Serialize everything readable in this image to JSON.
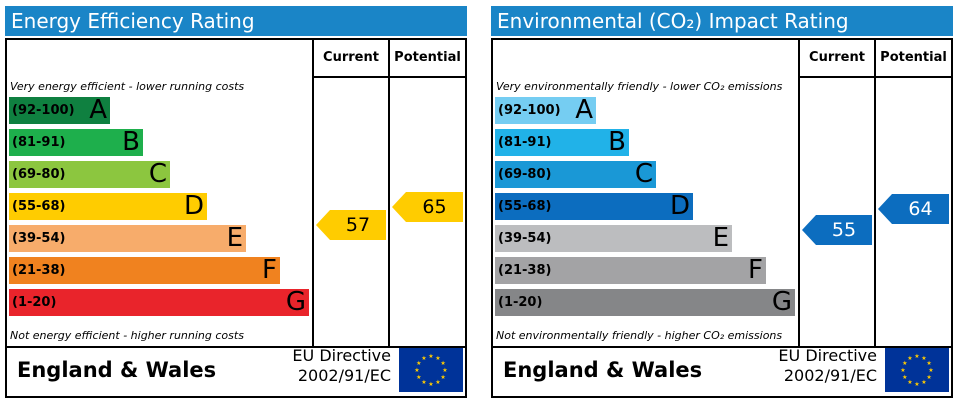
{
  "chart_data": [
    {
      "type": "bar",
      "title": "Energy Efficiency Rating",
      "top_note": "Very energy efficient - lower running costs",
      "bottom_note": "Not energy efficient - higher running costs",
      "columns": [
        "Current",
        "Potential"
      ],
      "bands": [
        {
          "range": "(92-100)",
          "letter": "A",
          "color": "#0f8040",
          "text_color": "#000000",
          "letter_color": "#000000"
        },
        {
          "range": "(81-91)",
          "letter": "B",
          "color": "#1eaf4c",
          "text_color": "#000000",
          "letter_color": "#000000"
        },
        {
          "range": "(69-80)",
          "letter": "C",
          "color": "#8cc63f",
          "text_color": "#000000",
          "letter_color": "#000000"
        },
        {
          "range": "(55-68)",
          "letter": "D",
          "color": "#ffcc00",
          "text_color": "#000000",
          "letter_color": "#000000"
        },
        {
          "range": "(39-54)",
          "letter": "E",
          "color": "#f7ac6b",
          "text_color": "#000000",
          "letter_color": "#000000"
        },
        {
          "range": "(21-38)",
          "letter": "F",
          "color": "#f0821f",
          "text_color": "#000000",
          "letter_color": "#000000"
        },
        {
          "range": "(1-20)",
          "letter": "G",
          "color": "#e9242b",
          "text_color": "#000000",
          "letter_color": "#000000"
        }
      ],
      "current": {
        "value": 57,
        "label": "57",
        "color": "#ffcc00",
        "text_color": "#000000"
      },
      "potential": {
        "value": 65,
        "label": "65",
        "color": "#ffcc00",
        "text_color": "#000000"
      },
      "region": "England & Wales",
      "directive": [
        "EU Directive",
        "2002/91/EC"
      ]
    },
    {
      "type": "bar",
      "title": "Environmental (CO₂) Impact Rating",
      "top_note": "Very environmentally friendly - lower CO₂ emissions",
      "bottom_note": "Not environmentally friendly - higher CO₂ emissions",
      "columns": [
        "Current",
        "Potential"
      ],
      "bands": [
        {
          "range": "(92-100)",
          "letter": "A",
          "color": "#75cdf2",
          "text_color": "#000000",
          "letter_color": "#000000"
        },
        {
          "range": "(81-91)",
          "letter": "B",
          "color": "#21b2e8",
          "text_color": "#000000",
          "letter_color": "#000000"
        },
        {
          "range": "(69-80)",
          "letter": "C",
          "color": "#1a98d6",
          "text_color": "#000000",
          "letter_color": "#000000"
        },
        {
          "range": "(55-68)",
          "letter": "D",
          "color": "#0c6dbf",
          "text_color": "#000000",
          "letter_color": "#000000"
        },
        {
          "range": "(39-54)",
          "letter": "E",
          "color": "#bcbdbf",
          "text_color": "#000000",
          "letter_color": "#000000"
        },
        {
          "range": "(21-38)",
          "letter": "F",
          "color": "#a3a3a5",
          "text_color": "#000000",
          "letter_color": "#000000"
        },
        {
          "range": "(1-20)",
          "letter": "G",
          "color": "#858688",
          "text_color": "#000000",
          "letter_color": "#000000"
        }
      ],
      "current": {
        "value": 55,
        "label": "55",
        "color": "#0c6dbf",
        "text_color": "#ffffff"
      },
      "potential": {
        "value": 64,
        "label": "64",
        "color": "#0c6dbf",
        "text_color": "#ffffff"
      },
      "region": "England & Wales",
      "directive": [
        "EU Directive",
        "2002/91/EC"
      ]
    }
  ]
}
